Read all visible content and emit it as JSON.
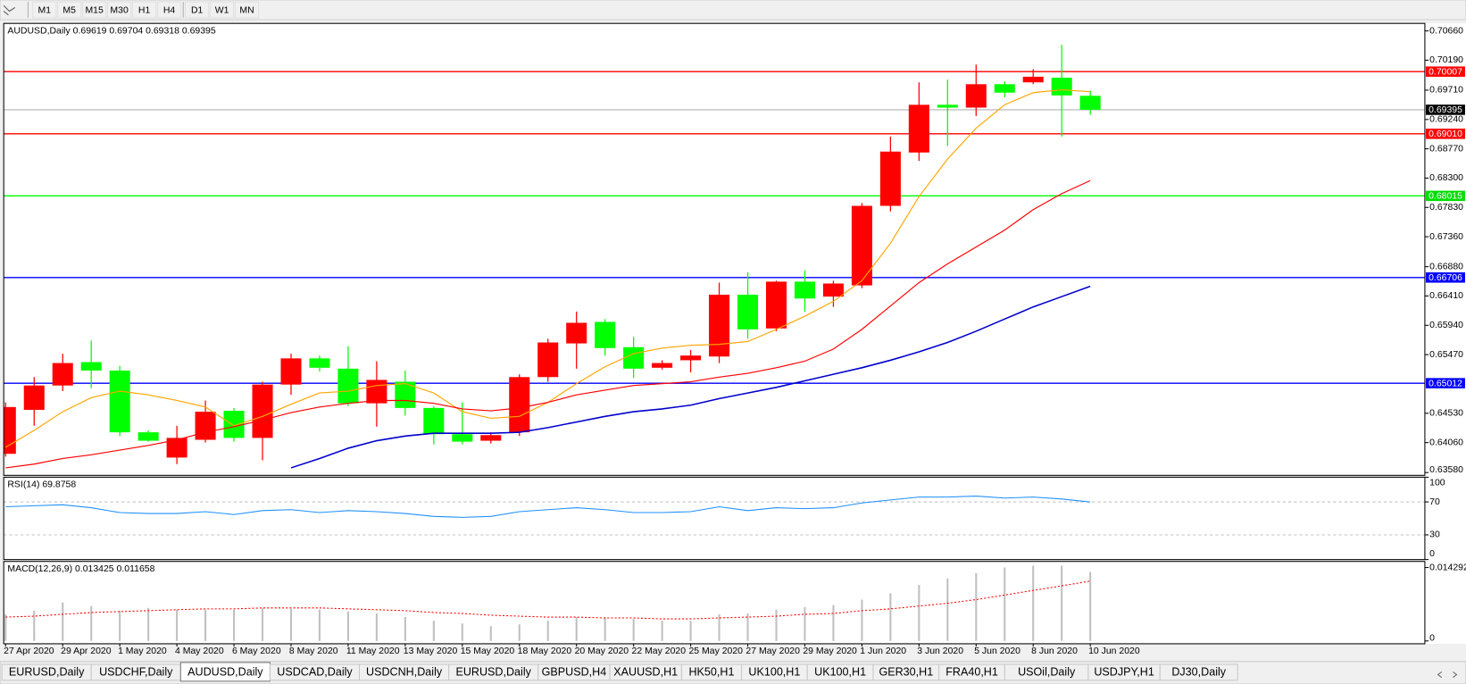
{
  "toolbar": {
    "timeframes": [
      "M1",
      "M5",
      "M15",
      "M30",
      "H1",
      "H4",
      "D1",
      "W1",
      "MN"
    ]
  },
  "chart_data": [
    {
      "type": "candlestick",
      "title": "AUDUSD,Daily  0.69619 0.69704 0.69318 0.69395",
      "up_color": "#ff0000",
      "down_color": "#00ff00",
      "open": [
        0.6388,
        0.64585,
        0.64975,
        0.6535,
        0.65215,
        0.64225,
        0.6382,
        0.64105,
        0.6457,
        0.64135,
        0.6499,
        0.6541,
        0.65245,
        0.6469,
        0.65035,
        0.64615,
        0.64195,
        0.6409,
        0.64225,
        0.6511,
        0.6565,
        0.65995,
        0.6559,
        0.6526,
        0.6538,
        0.6544,
        0.6643,
        0.6589,
        0.6664,
        0.664,
        0.6658,
        0.67855,
        0.6871,
        0.69475,
        0.6943,
        0.69805,
        0.69835,
        0.6991,
        0.69619
      ],
      "high": [
        0.64705,
        0.6511,
        0.65485,
        0.65695,
        0.6529,
        0.64255,
        0.6433,
        0.64735,
        0.64615,
        0.65035,
        0.65485,
        0.65455,
        0.65605,
        0.65365,
        0.65215,
        0.64645,
        0.64705,
        0.64225,
        0.65155,
        0.65725,
        0.6616,
        0.6604,
        0.65755,
        0.6538,
        0.65545,
        0.66625,
        0.6679,
        0.66655,
        0.6682,
        0.66655,
        0.679,
        0.68965,
        0.69835,
        0.6988,
        0.7012,
        0.6985,
        0.70045,
        0.70435,
        0.69704
      ],
      "low": [
        0.63835,
        0.6433,
        0.64885,
        0.6493,
        0.64165,
        0.64075,
        0.63715,
        0.6406,
        0.64075,
        0.63775,
        0.64825,
        0.652,
        0.64645,
        0.64315,
        0.64495,
        0.6403,
        0.6403,
        0.64045,
        0.64165,
        0.65035,
        0.65245,
        0.65455,
        0.65095,
        0.6523,
        0.65185,
        0.65335,
        0.65725,
        0.65845,
        0.6616,
        0.66235,
        0.66535,
        0.67765,
        0.68575,
        0.68815,
        0.69295,
        0.69595,
        0.69805,
        0.68965,
        0.69318
      ],
      "close": [
        0.6463,
        0.64975,
        0.65335,
        0.65215,
        0.64225,
        0.6409,
        0.64135,
        0.64555,
        0.64135,
        0.6499,
        0.6541,
        0.6526,
        0.6469,
        0.65065,
        0.64615,
        0.64195,
        0.64075,
        0.6418,
        0.6511,
        0.65665,
        0.6598,
        0.65575,
        0.65245,
        0.65335,
        0.65455,
        0.6643,
        0.65875,
        0.6664,
        0.6637,
        0.6661,
        0.67855,
        0.68725,
        0.69475,
        0.6943,
        0.69805,
        0.6967,
        0.69925,
        0.69625,
        0.69395
      ],
      "lines": [
        {
          "color": "#ffa500",
          "values": [
            0.63985,
            0.64255,
            0.64555,
            0.6478,
            0.64885,
            0.64825,
            0.64735,
            0.6463,
            0.6433,
            0.6448,
            0.64675,
            0.64855,
            0.64885,
            0.64975,
            0.65005,
            0.64855,
            0.64555,
            0.6445,
            0.6448,
            0.64705,
            0.65005,
            0.65275,
            0.65485,
            0.65575,
            0.6562,
            0.65635,
            0.6568,
            0.65875,
            0.66085,
            0.66325,
            0.66655,
            0.67255,
            0.68005,
            0.68605,
            0.691,
            0.69475,
            0.6967,
            0.69715,
            0.69685
          ]
        },
        {
          "color": "#ff0000",
          "values": [
            0.63655,
            0.63715,
            0.63805,
            0.63865,
            0.6394,
            0.64015,
            0.64105,
            0.64225,
            0.64315,
            0.6442,
            0.6454,
            0.6463,
            0.6469,
            0.64735,
            0.64735,
            0.6469,
            0.646,
            0.6457,
            0.64615,
            0.64705,
            0.64825,
            0.649,
            0.64975,
            0.65005,
            0.65035,
            0.6511,
            0.6517,
            0.6526,
            0.65365,
            0.6556,
            0.65875,
            0.6625,
            0.66625,
            0.66925,
            0.67195,
            0.67465,
            0.67795,
            0.6805,
            0.6826
          ]
        },
        {
          "color": "#0000cd",
          "values": [
            null,
            null,
            null,
            null,
            null,
            null,
            null,
            null,
            null,
            null,
            0.63655,
            0.63805,
            0.6397,
            0.6409,
            0.64165,
            0.6421,
            0.6421,
            0.6421,
            0.64225,
            0.643,
            0.6439,
            0.6448,
            0.64555,
            0.646,
            0.6466,
            0.64765,
            0.64855,
            0.64945,
            0.6505,
            0.65155,
            0.6526,
            0.6538,
            0.65515,
            0.65665,
            0.65845,
            0.6604,
            0.66235,
            0.664,
            0.66565
          ]
        }
      ],
      "levels": {
        "values": [
          0.70007,
          0.6901,
          0.68015,
          0.66706,
          0.65012,
          0.69395
        ],
        "value_labels": [
          "0.70007",
          "0.69010",
          "0.68015",
          "0.66706",
          "0.65012",
          "0.69395"
        ],
        "colors": [
          "#ff0000",
          "#ff0000",
          "#00ff00",
          "#0000ff",
          "#0000ff",
          "#c0c0c0"
        ],
        "label_colors": [
          "#ff0000",
          "#ff0000",
          "#00dd00",
          "#0000ff",
          "#0000ff",
          "#000000"
        ]
      },
      "ylim": [
        0.63535,
        0.7078
      ],
      "yticks": [
        {
          "value": 0.7066,
          "label": "0.70660"
        },
        {
          "value": 0.7019,
          "label": "0.70190"
        },
        {
          "value": 0.6971,
          "label": "0.69710"
        },
        {
          "value": 0.6924,
          "label": "0.69240"
        },
        {
          "value": 0.6877,
          "label": "0.68770"
        },
        {
          "value": 0.683,
          "label": "0.68300"
        },
        {
          "value": 0.6783,
          "label": "0.67830"
        },
        {
          "value": 0.6736,
          "label": "0.67360"
        },
        {
          "value": 0.6688,
          "label": "0.66880"
        },
        {
          "value": 0.6641,
          "label": "0.66410"
        },
        {
          "value": 0.6594,
          "label": "0.65940"
        },
        {
          "value": 0.6547,
          "label": "0.65470"
        },
        {
          "value": 0.6453,
          "label": "0.64530"
        },
        {
          "value": 0.6406,
          "label": "0.64060"
        },
        {
          "value": 0.6358,
          "label": "0.63580"
        }
      ]
    },
    {
      "type": "line",
      "title": "RSI(14) 69.8758",
      "color": "#1e90ff",
      "values": [
        64.1,
        65.3,
        66.5,
        62.9,
        57.1,
        55.9,
        55.9,
        58.2,
        54.7,
        59.4,
        60.6,
        57.1,
        59.4,
        58.2,
        55.9,
        52.4,
        51.2,
        52.4,
        58.2,
        60.6,
        62.9,
        60.6,
        57.1,
        57.1,
        58.2,
        64.1,
        59.4,
        62.9,
        61.8,
        62.9,
        68.8,
        72.4,
        75.9,
        75.9,
        77.1,
        74.7,
        75.9,
        73.5,
        69.8758
      ],
      "levels": [
        70,
        30
      ],
      "ylim": [
        0,
        100
      ],
      "yticks": [
        100,
        70,
        30,
        0
      ]
    },
    {
      "type": "macd",
      "title": "MACD(12,26,9) 0.013425 0.011658",
      "histogram_color": "#c0c0c0",
      "signal_color": "#ff0000",
      "histogram": [
        0.00518,
        0.0059,
        0.00751,
        0.00679,
        0.0059,
        0.00643,
        0.00608,
        0.00608,
        0.00608,
        0.00643,
        0.00625,
        0.00608,
        0.00572,
        0.00536,
        0.00465,
        0.00393,
        0.0034,
        0.00286,
        0.00322,
        0.00393,
        0.00465,
        0.00465,
        0.00429,
        0.00393,
        0.00393,
        0.00518,
        0.00536,
        0.00608,
        0.00661,
        0.00697,
        0.00804,
        0.00929,
        0.0109,
        0.01215,
        0.01322,
        0.0143,
        0.01465,
        0.01465,
        0.013425
      ],
      "signal": [
        0.00465,
        0.00482,
        0.00518,
        0.00554,
        0.00572,
        0.0059,
        0.00608,
        0.00625,
        0.00625,
        0.00643,
        0.00643,
        0.00643,
        0.00625,
        0.00608,
        0.0059,
        0.00554,
        0.00536,
        0.005,
        0.00482,
        0.00465,
        0.00465,
        0.00447,
        0.00447,
        0.00429,
        0.00429,
        0.00447,
        0.00465,
        0.00482,
        0.00518,
        0.00536,
        0.0059,
        0.00625,
        0.00679,
        0.00733,
        0.00804,
        0.00894,
        0.00983,
        0.01072,
        0.011658
      ],
      "categories": [
        "27 Apr 2020",
        null,
        "29 Apr 2020",
        null,
        "1 May 2020",
        null,
        "4 May 2020",
        null,
        "6 May 2020",
        null,
        "8 May 2020",
        null,
        "11 May 2020",
        null,
        "13 May 2020",
        null,
        "15 May 2020",
        null,
        "18 May 2020",
        null,
        "20 May 2020",
        null,
        "22 May 2020",
        null,
        "25 May 2020",
        null,
        "27 May 2020",
        null,
        "29 May 2020",
        null,
        "1 Jun 2020",
        null,
        "3 Jun 2020",
        null,
        "5 Jun 2020",
        null,
        "8 Jun 2020",
        null,
        "10 Jun 2020"
      ],
      "ylim": [
        -0.00055,
        0.01548
      ],
      "yticks": [
        0.014292,
        0
      ]
    }
  ],
  "tabs": [
    "EURUSD,Daily",
    "USDCHF,Daily",
    "AUDUSD,Daily",
    "USDCAD,Daily",
    "USDCNH,Daily",
    "EURUSD,Daily",
    "GBPUSD,H4",
    "XAUUSD,H1",
    "HK50,H1",
    "UK100,H1",
    "UK100,H1",
    "GER30,H1",
    "FRA40,H1",
    "USOil,Daily",
    "USDJPY,H1",
    "DJ30,Daily"
  ],
  "active_tab": 2
}
